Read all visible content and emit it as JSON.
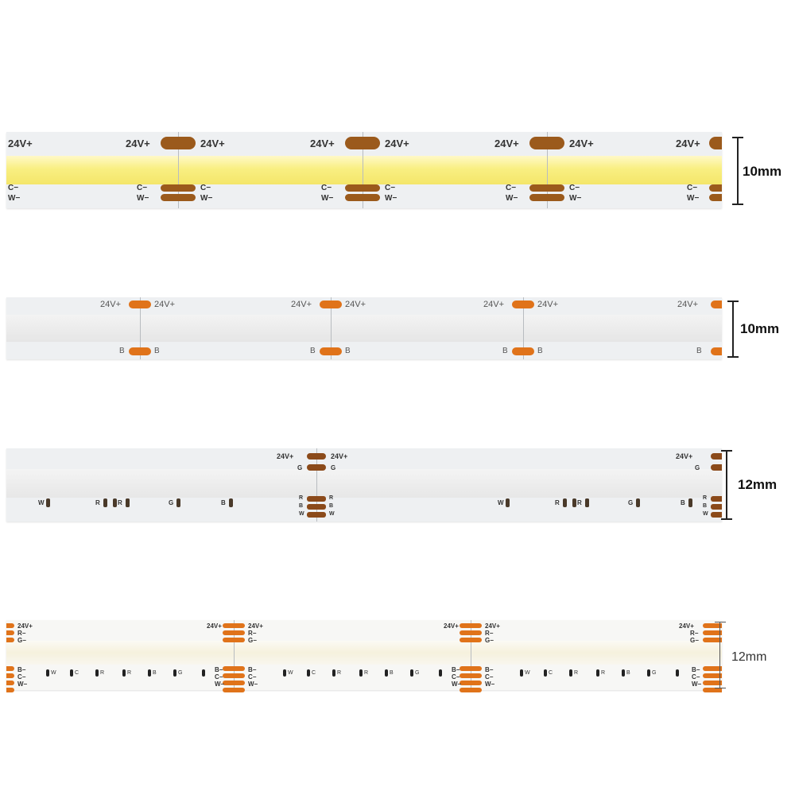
{
  "strips": [
    {
      "id": "cct-cob-strip",
      "voltage_label": "24V+",
      "neg_labels": [
        "C−",
        "W−"
      ],
      "width_label": "10mm",
      "led_color": "#fbf39a",
      "pad_color": "#9b5a1c"
    },
    {
      "id": "single-color-cob-strip",
      "voltage_label": "24V+",
      "neg_label": "B",
      "width_label": "10mm",
      "pad_color": "#e0731a"
    },
    {
      "id": "rgbw-cob-strip",
      "voltage_label": "24V+",
      "g_label": "G",
      "neg_labels": [
        "R",
        "B",
        "W"
      ],
      "chip_labels": [
        "W",
        "R",
        "R",
        "G",
        "B"
      ],
      "width_label": "12mm",
      "pad_color": "#8b4a1a"
    },
    {
      "id": "rgbcct-cob-strip",
      "voltage_label": "24V+",
      "top_labels": [
        "R−",
        "G−"
      ],
      "bottom_labels": [
        "B−",
        "C−",
        "W−"
      ],
      "chip_labels": [
        "W",
        "C",
        "R",
        "R",
        "B",
        "G"
      ],
      "width_label": "12mm",
      "pad_color": "#e0731a"
    }
  ]
}
